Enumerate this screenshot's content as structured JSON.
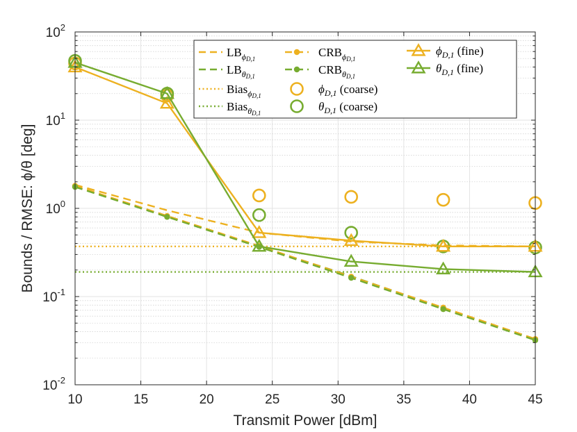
{
  "chart_data": {
    "type": "line",
    "title": "",
    "xlabel": "Transmit Power [dBm]",
    "ylabel": "Bounds / RMSE: ϕ/θ [deg]",
    "xlim": [
      10,
      45
    ],
    "ylim": [
      0.01,
      100
    ],
    "yscale": "log",
    "grid": true,
    "legend_position": "top-right",
    "x_ticks": [
      10,
      15,
      20,
      25,
      30,
      35,
      40,
      45
    ],
    "x_tick_labels": [
      "10",
      "15",
      "20",
      "25",
      "30",
      "35",
      "40",
      "45"
    ],
    "y_ticks": [
      0.01,
      0.1,
      1,
      10,
      100
    ],
    "y_tick_bases": [
      "10",
      "10",
      "10",
      "10",
      "10"
    ],
    "y_tick_exps": [
      "-2",
      "-1",
      "0",
      "1",
      "2"
    ],
    "colors": {
      "phi": "#EDB120",
      "theta": "#77AC30"
    },
    "series": [
      {
        "id": "lb_phi",
        "name": "LB",
        "sub": "ϕD,1",
        "color": "#EDB120",
        "style": "dashed",
        "marker": "none",
        "x": [
          10,
          17,
          24,
          31,
          38,
          45
        ],
        "y": [
          1.85,
          0.95,
          0.53,
          0.42,
          0.38,
          0.37
        ]
      },
      {
        "id": "lb_theta",
        "name": "LB",
        "sub": "θD,1",
        "color": "#77AC30",
        "style": "dashed",
        "marker": "none",
        "x": [
          10,
          17,
          24,
          31,
          38,
          45
        ],
        "y": [
          1.75,
          0.82,
          0.37,
          0.17,
          0.074,
          0.033
        ]
      },
      {
        "id": "bias_phi",
        "name": "Bias",
        "sub": "ϕD,1",
        "color": "#EDB120",
        "style": "dotted",
        "marker": "none",
        "x": [
          10,
          45
        ],
        "y": [
          0.37,
          0.37
        ]
      },
      {
        "id": "bias_theta",
        "name": "Bias",
        "sub": "θD,1",
        "color": "#77AC30",
        "style": "dotted",
        "marker": "none",
        "x": [
          10,
          45
        ],
        "y": [
          0.19,
          0.19
        ]
      },
      {
        "id": "crb_phi",
        "name": "CRB",
        "sub": "ϕD,1",
        "color": "#EDB120",
        "style": "dashed",
        "marker": "dot",
        "x": [
          10,
          17,
          24,
          31,
          38,
          45
        ],
        "y": [
          1.8,
          0.82,
          0.375,
          0.168,
          0.075,
          0.033
        ]
      },
      {
        "id": "crb_theta",
        "name": "CRB",
        "sub": "θD,1",
        "color": "#77AC30",
        "style": "dashed",
        "marker": "dot",
        "x": [
          10,
          17,
          24,
          31,
          38,
          45
        ],
        "y": [
          1.75,
          0.8,
          0.365,
          0.163,
          0.072,
          0.032
        ]
      },
      {
        "id": "coarse_phi",
        "name": "ϕD,1 (coarse)",
        "sub": "",
        "color": "#EDB120",
        "style": "none",
        "marker": "circle",
        "x": [
          10,
          17,
          24,
          31,
          38,
          45
        ],
        "y": [
          44,
          19,
          1.4,
          1.35,
          1.25,
          1.15
        ]
      },
      {
        "id": "coarse_theta",
        "name": "θD,1 (coarse)",
        "sub": "",
        "color": "#77AC30",
        "style": "none",
        "marker": "circle",
        "x": [
          10,
          17,
          24,
          31,
          38,
          45
        ],
        "y": [
          47,
          20,
          0.84,
          0.53,
          0.37,
          0.36
        ]
      },
      {
        "id": "fine_phi",
        "name": "ϕD,1 (fine)",
        "sub": "",
        "color": "#EDB120",
        "style": "solid",
        "marker": "triangle",
        "x": [
          10,
          17,
          24,
          31,
          38,
          45
        ],
        "y": [
          40,
          15.5,
          0.53,
          0.43,
          0.37,
          0.37
        ]
      },
      {
        "id": "fine_theta",
        "name": "θD,1 (fine)",
        "sub": "",
        "color": "#77AC30",
        "style": "solid",
        "marker": "triangle",
        "x": [
          10,
          17,
          24,
          31,
          38,
          45
        ],
        "y": [
          45,
          20,
          0.37,
          0.25,
          0.205,
          0.19
        ]
      }
    ],
    "legend": {
      "col1": [
        {
          "series": "lb_phi",
          "main": "LB",
          "sym": "ϕ",
          "subsub": "D,1"
        },
        {
          "series": "lb_theta",
          "main": "LB",
          "sym": "θ",
          "subsub": "D,1"
        },
        {
          "series": "bias_phi",
          "main": "Bias",
          "sym": "ϕ",
          "subsub": "D,1"
        },
        {
          "series": "bias_theta",
          "main": "Bias",
          "sym": "θ",
          "subsub": "D,1"
        }
      ],
      "col2": [
        {
          "series": "crb_phi",
          "main": "CRB",
          "sym": "ϕ",
          "subsub": "D,1",
          "suffix": ""
        },
        {
          "series": "crb_theta",
          "main": "CRB",
          "sym": "θ",
          "subsub": "D,1",
          "suffix": ""
        },
        {
          "series": "coarse_phi",
          "main": "",
          "sym": "ϕ",
          "subsub": "D,1",
          "suffix": " (coarse)"
        },
        {
          "series": "coarse_theta",
          "main": "",
          "sym": "θ",
          "subsub": "D,1",
          "suffix": " (coarse)"
        }
      ],
      "col3": [
        {
          "series": "fine_phi",
          "main": "",
          "sym": "ϕ",
          "subsub": "D,1",
          "suffix": " (fine)"
        },
        {
          "series": "fine_theta",
          "main": "",
          "sym": "θ",
          "subsub": "D,1",
          "suffix": " (fine)"
        }
      ]
    }
  }
}
